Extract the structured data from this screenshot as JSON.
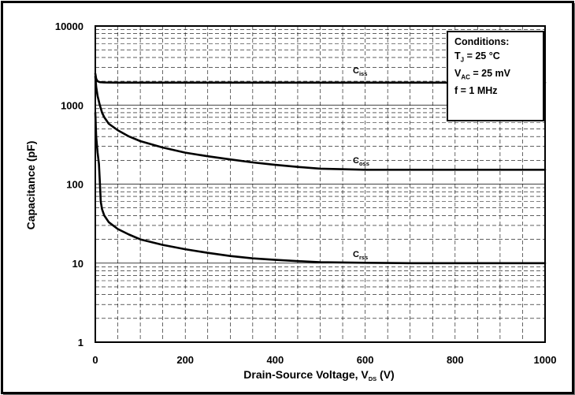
{
  "chart_data": {
    "type": "line",
    "xlabel": "Drain-Source Voltage, V",
    "xlabel_sub": "DS",
    "xlabel_unit": " (V)",
    "ylabel": "Capacitance (pF)",
    "xlim": [
      0,
      1000
    ],
    "ylim": [
      1,
      10000
    ],
    "yscale": "log",
    "grid": true,
    "x_ticks": [
      "0",
      "200",
      "400",
      "600",
      "800",
      "1000"
    ],
    "y_ticks": [
      "1",
      "10",
      "100",
      "1000",
      "10000"
    ],
    "conditions": {
      "title": "Conditions:",
      "tj_var": "T",
      "tj_sub": "J",
      "tj_rest": " = 25 °C",
      "vac_var": "V",
      "vac_sub": "AC",
      "vac_rest": " = 25 mV",
      "freq": "f = 1 MHz"
    },
    "series": [
      {
        "name": "Ciss",
        "label_main": "C",
        "label_sub": "iss",
        "x": [
          0,
          2,
          5,
          10,
          20,
          50,
          100,
          200,
          400,
          600,
          800,
          1000
        ],
        "y": [
          2500,
          2150,
          2000,
          1950,
          1930,
          1920,
          1920,
          1920,
          1920,
          1920,
          1920,
          1920
        ]
      },
      {
        "name": "Coss",
        "label_main": "C",
        "label_sub": "oss",
        "x": [
          0,
          2,
          5,
          10,
          15,
          20,
          30,
          50,
          75,
          100,
          150,
          200,
          250,
          300,
          350,
          400,
          450,
          500,
          600,
          700,
          800,
          900,
          1000
        ],
        "y": [
          2300,
          1700,
          1300,
          1000,
          800,
          700,
          580,
          480,
          400,
          350,
          290,
          250,
          225,
          205,
          188,
          175,
          165,
          157,
          152,
          152,
          152,
          152,
          152
        ]
      },
      {
        "name": "Crss",
        "label_main": "C",
        "label_sub": "rss",
        "x": [
          0,
          2,
          5,
          8,
          10,
          12,
          15,
          20,
          30,
          50,
          75,
          100,
          150,
          200,
          250,
          300,
          350,
          400,
          450,
          500,
          600,
          700,
          800,
          900,
          1000
        ],
        "y": [
          800,
          400,
          250,
          180,
          110,
          60,
          48,
          40,
          33,
          27,
          23,
          20,
          17,
          15,
          13.5,
          12.3,
          11.5,
          11,
          10.6,
          10.3,
          10.1,
          10,
          10,
          10,
          10
        ]
      }
    ]
  }
}
